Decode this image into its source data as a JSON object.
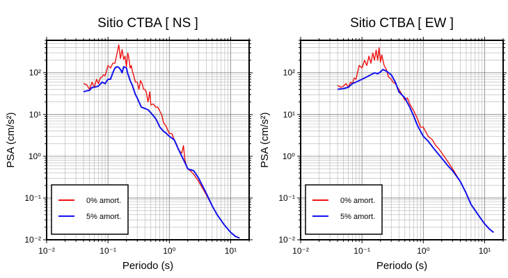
{
  "chart_data": [
    {
      "type": "line",
      "title": "Sitio CTBA [ NS ]",
      "xlabel": "Periodo (s)",
      "ylabel": "PSA (cm/s²)",
      "x_scale": "log",
      "y_scale": "log",
      "xlim": [
        0.01,
        20
      ],
      "ylim": [
        0.01,
        600
      ],
      "x_tick_labels": [
        "10⁻²",
        "10⁻¹",
        "10⁰",
        "10¹"
      ],
      "y_tick_labels": [
        "10⁻²",
        "10⁻¹",
        "10⁰",
        "10¹",
        "10²"
      ],
      "grid": true,
      "legend_position": "bottom-left",
      "series": [
        {
          "name": "0% amort.",
          "color": "#ee1111",
          "x": [
            0.04,
            0.045,
            0.05,
            0.055,
            0.06,
            0.065,
            0.07,
            0.075,
            0.08,
            0.085,
            0.09,
            0.1,
            0.11,
            0.12,
            0.13,
            0.14,
            0.15,
            0.16,
            0.17,
            0.18,
            0.19,
            0.2,
            0.21,
            0.22,
            0.23,
            0.24,
            0.25,
            0.26,
            0.28,
            0.3,
            0.32,
            0.34,
            0.36,
            0.38,
            0.4,
            0.42,
            0.45,
            0.48,
            0.5,
            0.55,
            0.6,
            0.65,
            0.7,
            0.75,
            0.8,
            0.9,
            1.0,
            1.1,
            1.2,
            1.3,
            1.4,
            1.5,
            1.6,
            1.7,
            1.8,
            1.9,
            2.0,
            2.2,
            2.5,
            3,
            4,
            5,
            6,
            8,
            10,
            12,
            14
          ],
          "y": [
            55,
            52,
            40,
            60,
            45,
            70,
            55,
            75,
            80,
            90,
            85,
            150,
            130,
            170,
            170,
            280,
            470,
            220,
            360,
            210,
            250,
            140,
            300,
            220,
            130,
            150,
            110,
            90,
            60,
            60,
            40,
            65,
            55,
            40,
            40,
            35,
            20,
            35,
            17,
            18,
            15,
            15,
            12,
            10,
            6.5,
            5,
            3.5,
            3.5,
            2.5,
            2,
            1.5,
            1.3,
            1.2,
            1.8,
            0.8,
            0.6,
            0.5,
            0.45,
            0.37,
            0.25,
            0.12,
            0.065,
            0.04,
            0.022,
            0.015,
            0.012,
            0.011
          ]
        },
        {
          "name": "5% amort.",
          "color": "#1111ee",
          "x": [
            0.04,
            0.045,
            0.05,
            0.055,
            0.06,
            0.07,
            0.08,
            0.09,
            0.1,
            0.11,
            0.12,
            0.13,
            0.14,
            0.15,
            0.16,
            0.17,
            0.18,
            0.19,
            0.2,
            0.21,
            0.22,
            0.23,
            0.25,
            0.28,
            0.3,
            0.32,
            0.35,
            0.4,
            0.45,
            0.5,
            0.6,
            0.7,
            0.8,
            0.9,
            1.0,
            1.2,
            1.4,
            1.6,
            1.8,
            2.0,
            2.5,
            3,
            4,
            5,
            6,
            8,
            10,
            12,
            14
          ],
          "y": [
            35,
            37,
            38,
            45,
            45,
            48,
            60,
            55,
            70,
            70,
            100,
            130,
            140,
            135,
            120,
            100,
            140,
            135,
            130,
            95,
            80,
            65,
            50,
            30,
            25,
            20,
            15,
            14,
            13,
            11,
            8,
            5,
            4,
            3.5,
            3,
            2.5,
            1.5,
            1,
            0.7,
            0.5,
            0.45,
            0.3,
            0.13,
            0.065,
            0.04,
            0.022,
            0.015,
            0.012,
            0.011
          ]
        }
      ]
    },
    {
      "type": "line",
      "title": "Sitio CTBA [ EW ]",
      "xlabel": "Periodo (s)",
      "ylabel": "PSA (cm/s²)",
      "x_scale": "log",
      "y_scale": "log",
      "xlim": [
        0.01,
        20
      ],
      "ylim": [
        0.01,
        600
      ],
      "x_tick_labels": [
        "10⁻²",
        "10⁻¹",
        "10⁰",
        "10¹"
      ],
      "y_tick_labels": [
        "10⁻²",
        "10⁻¹",
        "10⁰",
        "10¹",
        "10²"
      ],
      "grid": true,
      "legend_position": "bottom-left",
      "series": [
        {
          "name": "0% amort.",
          "color": "#ee1111",
          "x": [
            0.04,
            0.045,
            0.05,
            0.055,
            0.06,
            0.065,
            0.07,
            0.075,
            0.08,
            0.09,
            0.1,
            0.11,
            0.12,
            0.13,
            0.14,
            0.15,
            0.16,
            0.17,
            0.18,
            0.19,
            0.2,
            0.21,
            0.22,
            0.23,
            0.25,
            0.27,
            0.3,
            0.32,
            0.35,
            0.4,
            0.45,
            0.5,
            0.55,
            0.6,
            0.7,
            0.8,
            0.9,
            1.0,
            1.2,
            1.4,
            1.6,
            1.8,
            2.0,
            2.5,
            3,
            4,
            5,
            6,
            8,
            10,
            12,
            14
          ],
          "y": [
            50,
            45,
            48,
            55,
            45,
            60,
            55,
            75,
            70,
            150,
            130,
            200,
            150,
            250,
            170,
            300,
            200,
            350,
            200,
            400,
            180,
            270,
            200,
            150,
            120,
            80,
            70,
            60,
            55,
            40,
            30,
            22,
            25,
            18,
            12,
            8,
            5,
            5,
            3,
            2.5,
            1.8,
            1.5,
            1.2,
            0.75,
            0.5,
            0.25,
            0.13,
            0.07,
            0.038,
            0.024,
            0.018,
            0.015
          ]
        },
        {
          "name": "5% amort.",
          "color": "#1111ee",
          "x": [
            0.04,
            0.05,
            0.06,
            0.07,
            0.08,
            0.09,
            0.1,
            0.12,
            0.14,
            0.16,
            0.18,
            0.2,
            0.22,
            0.25,
            0.3,
            0.35,
            0.4,
            0.5,
            0.6,
            0.7,
            0.8,
            1.0,
            1.2,
            1.5,
            2.0,
            2.5,
            3,
            4,
            5,
            6,
            8,
            10,
            12,
            14
          ],
          "y": [
            40,
            42,
            45,
            55,
            60,
            65,
            70,
            80,
            90,
            100,
            95,
            105,
            120,
            110,
            90,
            60,
            35,
            25,
            15,
            9,
            5.5,
            3,
            2.3,
            1.5,
            0.9,
            0.6,
            0.45,
            0.25,
            0.13,
            0.07,
            0.038,
            0.024,
            0.018,
            0.015
          ]
        }
      ]
    }
  ]
}
